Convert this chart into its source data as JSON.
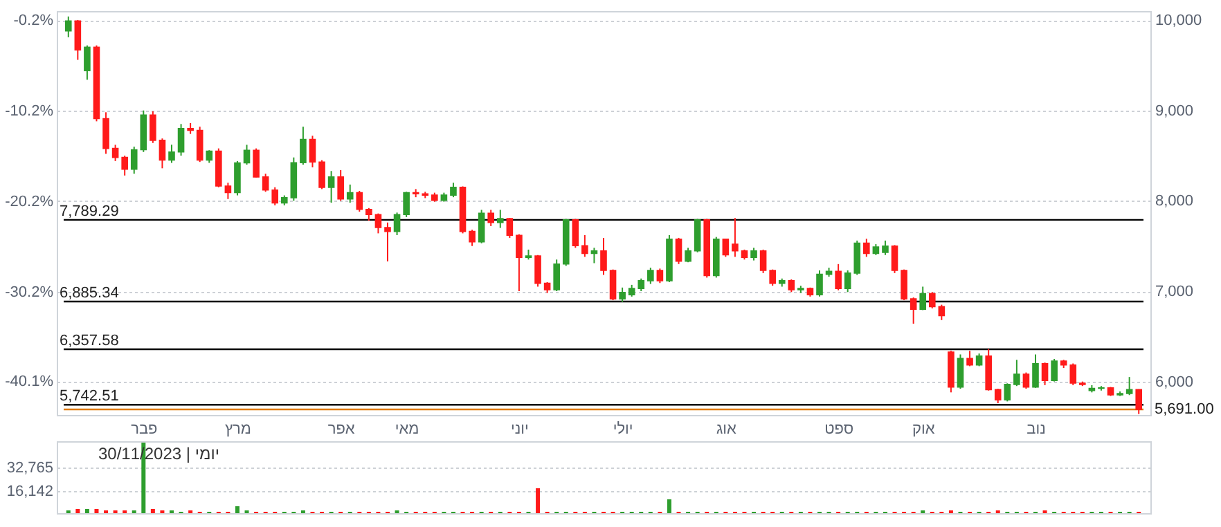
{
  "chart_data": [
    {
      "type": "candlestick",
      "categories": [
        null,
        null,
        null,
        null,
        null,
        null,
        null,
        null,
        "פבר",
        null,
        null,
        null,
        null,
        null,
        null,
        null,
        null,
        null,
        "מרץ",
        null,
        null,
        null,
        null,
        null,
        null,
        null,
        null,
        null,
        null,
        "אפר",
        null,
        null,
        null,
        null,
        null,
        null,
        "מאי",
        null,
        null,
        null,
        null,
        null,
        null,
        null,
        null,
        null,
        null,
        null,
        "יוני",
        null,
        null,
        null,
        null,
        null,
        null,
        null,
        null,
        null,
        null,
        "יולי",
        null,
        null,
        null,
        null,
        null,
        null,
        null,
        null,
        null,
        null,
        "אוג",
        null,
        null,
        null,
        null,
        null,
        null,
        null,
        null,
        null,
        null,
        null,
        "ספט",
        null,
        null,
        null,
        null,
        null,
        null,
        null,
        null,
        "אוק",
        null,
        null,
        null,
        null,
        null,
        null,
        null,
        null,
        null,
        null,
        null,
        "נוב",
        null,
        null,
        null,
        null,
        null,
        null,
        null,
        null,
        null,
        null,
        null
      ],
      "ohlc": [
        [
          9880,
          10040,
          9810,
          9990
        ],
        [
          9990,
          10000,
          9560,
          9670
        ],
        [
          9440,
          9720,
          9340,
          9700
        ],
        [
          9700,
          9720,
          8880,
          8910
        ],
        [
          8910,
          8980,
          8520,
          8580
        ],
        [
          8580,
          8620,
          8440,
          8480
        ],
        [
          8480,
          8500,
          8280,
          8350
        ],
        [
          8350,
          8600,
          8300,
          8565
        ],
        [
          8565,
          9000,
          8540,
          8950
        ],
        [
          8950,
          8990,
          8640,
          8670
        ],
        [
          8670,
          8690,
          8360,
          8450
        ],
        [
          8450,
          8620,
          8420,
          8540
        ],
        [
          8540,
          8850,
          8500,
          8800
        ],
        [
          8800,
          8860,
          8740,
          8780
        ],
        [
          8780,
          8820,
          8430,
          8450
        ],
        [
          8450,
          8560,
          8420,
          8550
        ],
        [
          8550,
          8580,
          8150,
          8163
        ],
        [
          8163,
          8200,
          8020,
          8091
        ],
        [
          8091,
          8440,
          8060,
          8420
        ],
        [
          8420,
          8620,
          8400,
          8560
        ],
        [
          8560,
          8580,
          8260,
          8264
        ],
        [
          8264,
          8300,
          8100,
          8120
        ],
        [
          8120,
          8150,
          7950,
          7977
        ],
        [
          7977,
          8060,
          7950,
          8034
        ],
        [
          8034,
          8480,
          8000,
          8422
        ],
        [
          8422,
          8820,
          8400,
          8680
        ],
        [
          8680,
          8720,
          8370,
          8430
        ],
        [
          8430,
          8450,
          8130,
          8149
        ],
        [
          8149,
          8330,
          7980,
          8264
        ],
        [
          8264,
          8340,
          8000,
          8020
        ],
        [
          8020,
          8180,
          7980,
          8091
        ],
        [
          8091,
          8110,
          7880,
          7905
        ],
        [
          7905,
          7920,
          7780,
          7848
        ],
        [
          7848,
          7860,
          7640,
          7704
        ],
        [
          7704,
          7760,
          7330,
          7661
        ],
        [
          7661,
          7870,
          7620,
          7848
        ],
        [
          7848,
          8100,
          7820,
          8091
        ],
        [
          8091,
          8130,
          8040,
          8077
        ],
        [
          8077,
          8100,
          8030,
          8063
        ],
        [
          8063,
          8090,
          7990,
          8005
        ],
        [
          8005,
          8090,
          7990,
          8063
        ],
        [
          8063,
          8200,
          8040,
          8149
        ],
        [
          8149,
          8160,
          7640,
          7661
        ],
        [
          7661,
          7680,
          7500,
          7546
        ],
        [
          7546,
          7900,
          7530,
          7862
        ],
        [
          7862,
          7900,
          7720,
          7761
        ],
        [
          7761,
          7900,
          7700,
          7804
        ],
        [
          7804,
          7810,
          7590,
          7618
        ],
        [
          7618,
          7630,
          7000,
          7374
        ],
        [
          7374,
          7460,
          7350,
          7390
        ],
        [
          7390,
          7400,
          7050,
          7087
        ],
        [
          7087,
          7100,
          6980,
          7015
        ],
        [
          7015,
          7350,
          7000,
          7300
        ],
        [
          7300,
          7800,
          7280,
          7790
        ],
        [
          7790,
          7800,
          7480,
          7503
        ],
        [
          7503,
          7620,
          7380,
          7417
        ],
        [
          7417,
          7480,
          7310,
          7446
        ],
        [
          7446,
          7590,
          7180,
          7230
        ],
        [
          7230,
          7240,
          6900,
          6915
        ],
        [
          6915,
          7040,
          6880,
          6987
        ],
        [
          6960,
          7070,
          6940,
          7030
        ],
        [
          7030,
          7140,
          7000,
          7116
        ],
        [
          7116,
          7260,
          7080,
          7230
        ],
        [
          7230,
          7250,
          7090,
          7116
        ],
        [
          7116,
          7620,
          7100,
          7575
        ],
        [
          7575,
          7590,
          7300,
          7331
        ],
        [
          7331,
          7480,
          7320,
          7446
        ],
        [
          7446,
          7800,
          7430,
          7790
        ],
        [
          7790,
          7800,
          7150,
          7173
        ],
        [
          7173,
          7600,
          7150,
          7575
        ],
        [
          7575,
          7580,
          7380,
          7403
        ],
        [
          7520,
          7810,
          7380,
          7446
        ],
        [
          7446,
          7460,
          7350,
          7374
        ],
        [
          7374,
          7480,
          7340,
          7446
        ],
        [
          7446,
          7460,
          7200,
          7230
        ],
        [
          7230,
          7240,
          7060,
          7087
        ],
        [
          7087,
          7140,
          7050,
          7116
        ],
        [
          7116,
          7130,
          6990,
          7015
        ],
        [
          7015,
          7060,
          6980,
          7030
        ],
        [
          7030,
          7040,
          6940,
          6960
        ],
        [
          6960,
          7230,
          6940,
          7187
        ],
        [
          7187,
          7260,
          7160,
          7220
        ],
        [
          7220,
          7300,
          7010,
          7030
        ],
        [
          7030,
          7230,
          6990,
          7200
        ],
        [
          7200,
          7560,
          7180,
          7532
        ],
        [
          7532,
          7580,
          7380,
          7417
        ],
        [
          7417,
          7520,
          7400,
          7489
        ],
        [
          7430,
          7560,
          7400,
          7500
        ],
        [
          7500,
          7510,
          7200,
          7230
        ],
        [
          7230,
          7240,
          6900,
          6915
        ],
        [
          6915,
          6930,
          6640,
          6800
        ],
        [
          6800,
          7050,
          6790,
          6972
        ],
        [
          6972,
          6990,
          6810,
          6829
        ],
        [
          6829,
          6850,
          6680,
          6728
        ],
        [
          6326,
          6340,
          5880,
          5939
        ],
        [
          5939,
          6300,
          5920,
          6255
        ],
        [
          6255,
          6340,
          6170,
          6183
        ],
        [
          6183,
          6310,
          6170,
          6283
        ],
        [
          6283,
          6360,
          5900,
          5910
        ],
        [
          5910,
          5920,
          5760,
          5796
        ],
        [
          5796,
          5980,
          5780,
          5968
        ],
        [
          5968,
          6240,
          5950,
          6082
        ],
        [
          6082,
          6100,
          5920,
          5939
        ],
        [
          5939,
          6300,
          5930,
          6197
        ],
        [
          6197,
          6210,
          5960,
          6011
        ],
        [
          6011,
          6250,
          6000,
          6226
        ],
        [
          6226,
          6240,
          6150,
          6183
        ],
        [
          6183,
          6200,
          5960,
          5982
        ],
        [
          5982,
          6000,
          5950,
          5968
        ],
        [
          5900,
          5960,
          5880,
          5925
        ],
        [
          5925,
          5950,
          5900,
          5930
        ],
        [
          5930,
          5940,
          5840,
          5853
        ],
        [
          5853,
          5890,
          5840,
          5867
        ],
        [
          5867,
          6050,
          5850,
          5910
        ],
        [
          5910,
          5915,
          5640,
          5691
        ]
      ],
      "colors": [
        "#2e9e2e",
        "#ff1a1a",
        "#2e9e2e",
        "#ff1a1a",
        "#ff1a1a",
        "#ff1a1a",
        "#ff1a1a",
        "#2e9e2e",
        "#2e9e2e",
        "#ff1a1a",
        "#ff1a1a",
        "#2e9e2e",
        "#2e9e2e",
        "#ff1a1a",
        "#ff1a1a",
        "#2e9e2e",
        "#ff1a1a",
        "#ff1a1a",
        "#2e9e2e",
        "#2e9e2e",
        "#ff1a1a",
        "#ff1a1a",
        "#ff1a1a",
        "#2e9e2e",
        "#2e9e2e",
        "#2e9e2e",
        "#ff1a1a",
        "#ff1a1a",
        "#2e9e2e",
        "#ff1a1a",
        "#2e9e2e",
        "#ff1a1a",
        "#ff1a1a",
        "#ff1a1a",
        "#ff1a1a",
        "#2e9e2e",
        "#2e9e2e",
        "#ff1a1a",
        "#ff1a1a",
        "#ff1a1a",
        "#2e9e2e",
        "#2e9e2e",
        "#ff1a1a",
        "#ff1a1a",
        "#2e9e2e",
        "#ff1a1a",
        "#2e9e2e",
        "#ff1a1a",
        "#ff1a1a",
        "#2e9e2e",
        "#ff1a1a",
        "#ff1a1a",
        "#2e9e2e",
        "#2e9e2e",
        "#ff1a1a",
        "#ff1a1a",
        "#2e9e2e",
        "#ff1a1a",
        "#ff1a1a",
        "#2e9e2e",
        "#2e9e2e",
        "#2e9e2e",
        "#2e9e2e",
        "#ff1a1a",
        "#2e9e2e",
        "#ff1a1a",
        "#2e9e2e",
        "#2e9e2e",
        "#ff1a1a",
        "#2e9e2e",
        "#ff1a1a",
        "#ff1a1a",
        "#ff1a1a",
        "#2e9e2e",
        "#ff1a1a",
        "#ff1a1a",
        "#2e9e2e",
        "#ff1a1a",
        "#2e9e2e",
        "#ff1a1a",
        "#2e9e2e",
        "#2e9e2e",
        "#ff1a1a",
        "#2e9e2e",
        "#2e9e2e",
        "#ff1a1a",
        "#2e9e2e",
        "#2e9e2e",
        "#ff1a1a",
        "#ff1a1a",
        "#ff1a1a",
        "#2e9e2e",
        "#ff1a1a",
        "#ff1a1a",
        "#ff1a1a",
        "#2e9e2e",
        "#ff1a1a",
        "#2e9e2e",
        "#ff1a1a",
        "#ff1a1a",
        "#2e9e2e",
        "#2e9e2e",
        "#ff1a1a",
        "#2e9e2e",
        "#ff1a1a",
        "#2e9e2e",
        "#ff1a1a",
        "#ff1a1a",
        "#ff1a1a",
        "#2e9e2e",
        "#2e9e2e",
        "#ff1a1a",
        "#2e9e2e",
        "#2e9e2e",
        "#ff1a1a"
      ],
      "ylim": [
        5630,
        10100
      ],
      "yticks": [
        {
          "value": 6000,
          "label": "6,000"
        },
        {
          "value": 7000,
          "label": "7,000"
        },
        {
          "value": 8000,
          "label": "8,000"
        },
        {
          "value": 9000,
          "label": "9,000"
        },
        {
          "value": 10000,
          "label": "10,000"
        }
      ],
      "y2lim": [
        -43.81,
        0.8
      ],
      "y2ticks": [
        {
          "value": -40.1,
          "label": "-40.1%"
        },
        {
          "value": -30.2,
          "label": "-30.2%"
        },
        {
          "value": -20.2,
          "label": "-20.2%"
        },
        {
          "value": -10.2,
          "label": "-10.2%"
        },
        {
          "value": -0.2,
          "label": "-0.2%"
        }
      ],
      "ref_lines": [
        {
          "axis": "y",
          "value": 7789.29,
          "label": "7,789.29"
        },
        {
          "axis": "y",
          "value": 6885.34,
          "label": "6,885.34"
        },
        {
          "axis": "y",
          "value": 6357.58,
          "label": "6,357.58"
        },
        {
          "axis": "y",
          "value": 5742.51,
          "label": "5,742.51"
        },
        {
          "axis": "y",
          "value": 5691,
          "label": "5,691.00",
          "color": "#e07b00"
        }
      ],
      "grid": "y"
    },
    {
      "type": "bar",
      "categories": [
        null,
        null,
        null,
        null,
        null,
        null,
        null,
        null,
        null,
        null,
        null,
        null,
        null,
        null,
        null,
        null,
        null,
        null,
        null,
        null,
        null,
        null,
        null,
        null,
        null,
        null,
        null,
        null,
        null,
        null,
        null,
        null,
        null,
        null,
        null,
        null,
        null,
        null,
        null,
        null,
        null,
        null,
        null,
        null,
        null,
        null,
        null,
        null,
        null,
        null,
        null,
        null,
        null,
        null,
        null,
        null,
        null,
        null,
        null,
        null,
        null,
        null,
        null,
        null,
        null,
        null,
        null,
        null,
        null,
        null,
        null,
        null,
        null,
        null,
        null,
        null,
        null,
        null,
        null,
        null,
        null,
        null,
        null,
        null,
        null,
        null,
        null,
        null,
        null,
        null,
        null,
        null,
        null,
        null,
        null,
        null,
        null,
        null,
        null,
        null,
        null,
        null,
        null,
        null,
        null,
        null,
        null,
        null,
        null,
        null,
        null,
        null,
        null,
        null,
        null
      ],
      "values": [
        2000,
        3000,
        3000,
        3000,
        2000,
        2000,
        2000,
        2000,
        51000,
        3000,
        2000,
        2000,
        1000,
        2000,
        1000,
        1000,
        1000,
        1000,
        5000,
        2000,
        1000,
        1000,
        1000,
        1000,
        1000,
        2000,
        1000,
        1000,
        1000,
        1000,
        1000,
        1000,
        1000,
        1000,
        1000,
        2000,
        1000,
        1000,
        1000,
        1000,
        1000,
        1000,
        1000,
        1000,
        1000,
        1000,
        1000,
        1000,
        1000,
        1000,
        18000,
        1000,
        1000,
        1000,
        1000,
        1000,
        1000,
        1000,
        1000,
        1000,
        1000,
        1000,
        1000,
        1000,
        10000,
        1000,
        1000,
        1000,
        1000,
        1000,
        1000,
        1000,
        1000,
        1000,
        1000,
        1000,
        1000,
        1000,
        1000,
        1000,
        1000,
        1000,
        1000,
        1000,
        1000,
        1000,
        1000,
        1000,
        1000,
        1000,
        1000,
        2000,
        1000,
        1000,
        2000,
        1000,
        1000,
        1000,
        1000,
        2000,
        1000,
        1000,
        1000,
        1000,
        2000,
        1000,
        1000,
        1000,
        1000,
        1000,
        1000,
        1000,
        1000,
        1000,
        1000
      ],
      "colors": [
        "#2e9e2e",
        "#ff1a1a",
        "#2e9e2e",
        "#ff1a1a",
        "#ff1a1a",
        "#ff1a1a",
        "#ff1a1a",
        "#2e9e2e",
        "#2e9e2e",
        "#ff1a1a",
        "#ff1a1a",
        "#2e9e2e",
        "#2e9e2e",
        "#ff1a1a",
        "#ff1a1a",
        "#2e9e2e",
        "#ff1a1a",
        "#ff1a1a",
        "#2e9e2e",
        "#2e9e2e",
        "#ff1a1a",
        "#ff1a1a",
        "#ff1a1a",
        "#2e9e2e",
        "#2e9e2e",
        "#2e9e2e",
        "#ff1a1a",
        "#ff1a1a",
        "#2e9e2e",
        "#ff1a1a",
        "#2e9e2e",
        "#ff1a1a",
        "#ff1a1a",
        "#ff1a1a",
        "#ff1a1a",
        "#2e9e2e",
        "#2e9e2e",
        "#ff1a1a",
        "#ff1a1a",
        "#ff1a1a",
        "#2e9e2e",
        "#2e9e2e",
        "#ff1a1a",
        "#ff1a1a",
        "#2e9e2e",
        "#ff1a1a",
        "#2e9e2e",
        "#ff1a1a",
        "#ff1a1a",
        "#2e9e2e",
        "#ff1a1a",
        "#ff1a1a",
        "#2e9e2e",
        "#2e9e2e",
        "#ff1a1a",
        "#ff1a1a",
        "#2e9e2e",
        "#ff1a1a",
        "#ff1a1a",
        "#2e9e2e",
        "#2e9e2e",
        "#2e9e2e",
        "#2e9e2e",
        "#ff1a1a",
        "#2e9e2e",
        "#ff1a1a",
        "#2e9e2e",
        "#2e9e2e",
        "#ff1a1a",
        "#2e9e2e",
        "#ff1a1a",
        "#ff1a1a",
        "#ff1a1a",
        "#2e9e2e",
        "#ff1a1a",
        "#ff1a1a",
        "#2e9e2e",
        "#ff1a1a",
        "#2e9e2e",
        "#ff1a1a",
        "#2e9e2e",
        "#2e9e2e",
        "#ff1a1a",
        "#2e9e2e",
        "#2e9e2e",
        "#ff1a1a",
        "#2e9e2e",
        "#2e9e2e",
        "#ff1a1a",
        "#ff1a1a",
        "#ff1a1a",
        "#2e9e2e",
        "#ff1a1a",
        "#ff1a1a",
        "#ff1a1a",
        "#2e9e2e",
        "#ff1a1a",
        "#2e9e2e",
        "#ff1a1a",
        "#ff1a1a",
        "#2e9e2e",
        "#2e9e2e",
        "#ff1a1a",
        "#2e9e2e",
        "#ff1a1a",
        "#2e9e2e",
        "#ff1a1a",
        "#ff1a1a",
        "#ff1a1a",
        "#2e9e2e",
        "#2e9e2e",
        "#ff1a1a",
        "#2e9e2e",
        "#2e9e2e",
        "#ff1a1a"
      ],
      "ylim": [
        0,
        52000
      ],
      "yticks": [
        {
          "value": 16142,
          "label": "16,142"
        },
        {
          "value": 32765,
          "label": "32,765"
        }
      ],
      "grid": "y",
      "tick_labels": "y",
      "annotations": [
        "יומי | 30/11/2023"
      ]
    }
  ]
}
